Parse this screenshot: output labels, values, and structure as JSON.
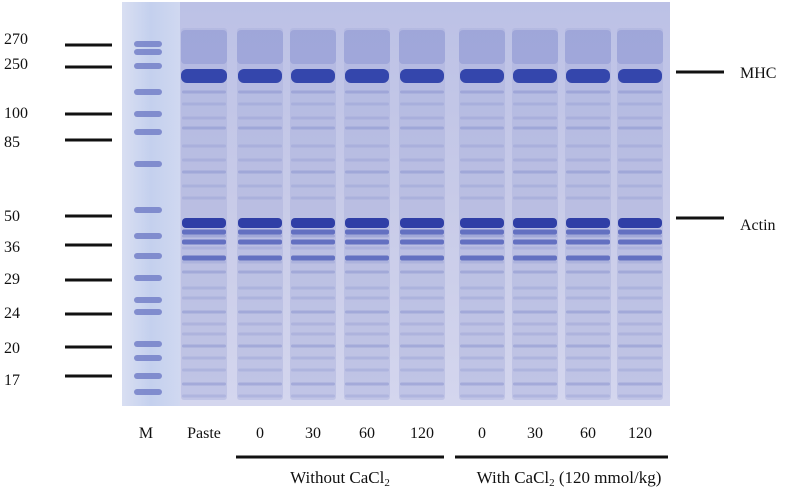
{
  "figure": {
    "marker_weights": [
      "270",
      "250",
      "100",
      "85",
      "50",
      "36",
      "29",
      "24",
      "20",
      "17"
    ],
    "lanes": [
      "M",
      "Paste",
      "0",
      "30",
      "60",
      "120",
      "0",
      "30",
      "60",
      "120"
    ],
    "bands": [
      "MHC",
      "Actin"
    ],
    "groups": [
      {
        "label": "Without CaCl",
        "sub": "2",
        "suffix": ""
      },
      {
        "label": "With CaCl",
        "sub": "2",
        "suffix": " (120 mmol/kg)"
      }
    ],
    "colors": {
      "gel_background": "#c7cae6",
      "band_dark": "#3446ac",
      "band_light": "#8c95cf",
      "ink": "#111111"
    }
  }
}
